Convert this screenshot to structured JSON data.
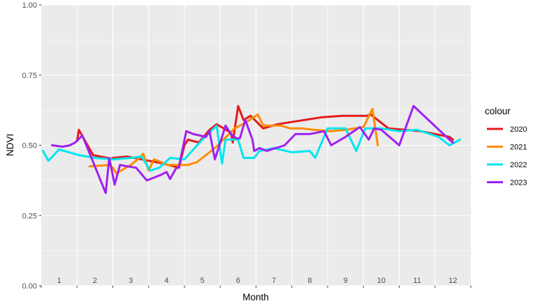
{
  "chart_data": {
    "type": "line",
    "xlabel": "Month",
    "ylabel": "NDVI",
    "ylim": [
      0,
      1
    ],
    "xlim": [
      0.5,
      12.5
    ],
    "y_ticks": [
      "0.00",
      "0.25",
      "0.50",
      "0.75",
      "1.00"
    ],
    "month_labels": [
      "1",
      "2",
      "3",
      "4",
      "5",
      "6",
      "7",
      "8",
      "9",
      "10",
      "11",
      "12"
    ],
    "grid": true,
    "legend": {
      "title": "colour",
      "position": "right"
    },
    "series": [
      {
        "name": "2020",
        "color": "#e31a1c",
        "x": [
          1.5,
          1.55,
          1.95,
          2.35,
          2.42,
          2.5,
          2.9,
          3.5,
          3.9,
          4.35,
          4.5,
          4.6,
          4.9,
          5.2,
          5.4,
          5.8,
          5.85,
          6.0,
          6.15,
          6.35,
          6.7,
          7.1,
          7.6,
          8.35,
          8.9,
          9.6,
          9.7,
          10.2,
          11.1,
          11.9,
          12.0
        ],
        "y": [
          0.515,
          0.555,
          0.465,
          0.455,
          0.45,
          0.455,
          0.46,
          0.445,
          0.435,
          0.42,
          0.5,
          0.52,
          0.51,
          0.555,
          0.575,
          0.545,
          0.51,
          0.64,
          0.59,
          0.605,
          0.56,
          0.575,
          0.585,
          0.6,
          0.605,
          0.605,
          0.61,
          0.56,
          0.55,
          0.53,
          0.52
        ]
      },
      {
        "name": "2021",
        "color": "#ff8c00",
        "x": [
          1.85,
          2.4,
          2.5,
          2.6,
          3.0,
          3.2,
          3.35,
          3.5,
          3.65,
          4.05,
          4.6,
          4.85,
          5.35,
          5.9,
          6.2,
          6.55,
          6.7,
          7.2,
          7.45,
          7.8,
          8.1,
          8.6,
          9.0,
          9.5,
          9.75,
          9.9
        ],
        "y": [
          0.425,
          0.43,
          0.42,
          0.4,
          0.43,
          0.45,
          0.47,
          0.41,
          0.45,
          0.43,
          0.43,
          0.44,
          0.49,
          0.56,
          0.58,
          0.61,
          0.57,
          0.57,
          0.56,
          0.56,
          0.555,
          0.55,
          0.555,
          0.565,
          0.63,
          0.5
        ]
      },
      {
        "name": "2022",
        "color": "#00e5ee",
        "x": [
          0.55,
          0.7,
          1.0,
          1.55,
          2.0,
          2.5,
          3.0,
          3.3,
          3.55,
          3.8,
          4.1,
          4.5,
          5.0,
          5.4,
          5.55,
          5.65,
          6.0,
          6.15,
          6.45,
          6.6,
          7.0,
          7.5,
          8.0,
          8.15,
          8.5,
          9.0,
          9.3,
          9.55,
          10.0,
          10.5,
          11.0,
          11.6,
          11.9,
          12.2
        ],
        "y": [
          0.48,
          0.445,
          0.485,
          0.465,
          0.455,
          0.45,
          0.455,
          0.46,
          0.41,
          0.42,
          0.455,
          0.45,
          0.52,
          0.57,
          0.435,
          0.52,
          0.52,
          0.455,
          0.455,
          0.48,
          0.49,
          0.475,
          0.48,
          0.455,
          0.56,
          0.56,
          0.48,
          0.56,
          0.56,
          0.55,
          0.555,
          0.53,
          0.5,
          0.52
        ]
      },
      {
        "name": "2023",
        "color": "#a020f0",
        "x": [
          0.8,
          1.1,
          1.3,
          1.45,
          1.65,
          2.3,
          2.4,
          2.55,
          2.7,
          2.9,
          3.15,
          3.45,
          3.55,
          3.85,
          4.0,
          4.1,
          4.25,
          4.35,
          4.55,
          4.75,
          5.1,
          5.2,
          5.35,
          5.5,
          5.65,
          5.8,
          5.95,
          6.05,
          6.2,
          6.4,
          6.45,
          6.6,
          6.8,
          7.3,
          7.6,
          8.0,
          8.4,
          8.6,
          9.0,
          9.4,
          9.65,
          9.8,
          10.0,
          10.5,
          10.9,
          11.9,
          12.0
        ],
        "y": [
          0.5,
          0.495,
          0.5,
          0.51,
          0.535,
          0.33,
          0.455,
          0.36,
          0.43,
          0.425,
          0.42,
          0.375,
          0.38,
          0.395,
          0.405,
          0.38,
          0.415,
          0.425,
          0.55,
          0.54,
          0.53,
          0.55,
          0.45,
          0.51,
          0.57,
          0.54,
          0.525,
          0.525,
          0.59,
          0.52,
          0.48,
          0.49,
          0.48,
          0.5,
          0.54,
          0.54,
          0.55,
          0.5,
          0.53,
          0.565,
          0.52,
          0.56,
          0.555,
          0.5,
          0.64,
          0.52,
          0.51
        ]
      }
    ]
  }
}
